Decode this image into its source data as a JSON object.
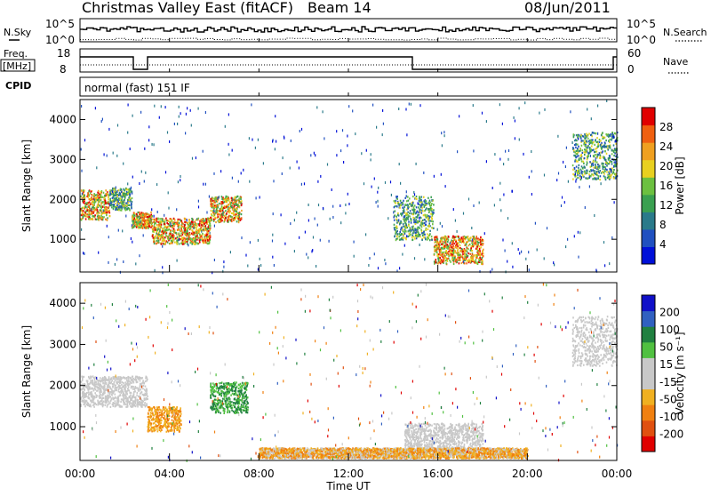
{
  "header": {
    "title": "Christmas Valley East (fitACF)",
    "beam": "Beam 14",
    "date": "08/Jun/2011"
  },
  "summary_panels": {
    "nsky": {
      "label": "N.Sky",
      "ticks": [
        "10^5",
        "10^0"
      ]
    },
    "nsearch": {
      "label": "N.Search",
      "ticks": [
        "10^5",
        "10^0"
      ]
    },
    "freq": {
      "label_line1": "Freq.",
      "label_line2": "[MHz]",
      "ticks": [
        "18",
        "8"
      ]
    },
    "nave": {
      "label": "Nave",
      "ticks": [
        "60",
        "0"
      ]
    },
    "cpid": {
      "label": "CPID",
      "mode_text": "normal (fast) 151 IF"
    }
  },
  "colors": {
    "power": [
      "#0010d8",
      "#2050c0",
      "#2a7a8a",
      "#3aa050",
      "#6cc040",
      "#e8d020",
      "#f0a020",
      "#f06010",
      "#e00000"
    ],
    "velocity": [
      "#1010c8",
      "#3060c0",
      "#208040",
      "#50c040",
      "#c8c8c8",
      "#c8c8c8",
      "#f0b020",
      "#f08010",
      "#e05010",
      "#e00000"
    ]
  },
  "chart_data": [
    {
      "type": "heatmap",
      "name": "power",
      "xlabel": "",
      "ylabel": "Slant Range [km]",
      "xlim": [
        0,
        24
      ],
      "ylim": [
        180,
        4500
      ],
      "yticks": [
        "1000",
        "2000",
        "3000",
        "4000"
      ],
      "colorbar": {
        "label": "Power [dB]",
        "range": [
          0,
          32
        ],
        "ticks": [
          "4",
          "8",
          "12",
          "16",
          "20",
          "24",
          "28"
        ]
      },
      "features": [
        {
          "t": [
            0.0,
            1.3
          ],
          "r": [
            1500,
            2250
          ],
          "level": "high"
        },
        {
          "t": [
            1.3,
            2.3
          ],
          "r": [
            1750,
            2300
          ],
          "level": "medium"
        },
        {
          "t": [
            2.3,
            3.2
          ],
          "r": [
            1300,
            1700
          ],
          "level": "high"
        },
        {
          "t": [
            3.2,
            5.8
          ],
          "r": [
            900,
            1550
          ],
          "level": "high"
        },
        {
          "t": [
            5.8,
            7.2
          ],
          "r": [
            1450,
            2100
          ],
          "level": "high"
        },
        {
          "t": [
            14.0,
            15.8
          ],
          "r": [
            1000,
            2100
          ],
          "level": "medium"
        },
        {
          "t": [
            15.8,
            18.0
          ],
          "r": [
            400,
            1100
          ],
          "level": "high"
        },
        {
          "t": [
            22.0,
            24.0
          ],
          "r": [
            2500,
            3700
          ],
          "level": "medium"
        }
      ]
    },
    {
      "type": "heatmap",
      "name": "velocity",
      "xlabel": "Time UT",
      "ylabel": "Slant Range [km]",
      "xlim": [
        0,
        24
      ],
      "ylim": [
        180,
        4500
      ],
      "xticks": [
        "00:00",
        "04:00",
        "08:00",
        "12:00",
        "16:00",
        "20:00",
        "00:00"
      ],
      "yticks": [
        "1000",
        "2000",
        "3000",
        "4000"
      ],
      "colorbar": {
        "label": "Velocity [m s-1]",
        "ticks": [
          "200",
          "100",
          "50",
          "15",
          "-15",
          "-50",
          "-100",
          "-200"
        ]
      },
      "features": [
        {
          "t": [
            0.0,
            3.0
          ],
          "r": [
            1500,
            2250
          ],
          "value": "near zero"
        },
        {
          "t": [
            3.0,
            4.5
          ],
          "r": [
            900,
            1500
          ],
          "value": "-50"
        },
        {
          "t": [
            5.8,
            7.5
          ],
          "r": [
            1350,
            2100
          ],
          "value": "50"
        },
        {
          "t": [
            14.5,
            18.0
          ],
          "r": [
            400,
            1100
          ],
          "value": "near zero"
        },
        {
          "t": [
            8.0,
            20.0
          ],
          "r": [
            250,
            500
          ],
          "value": "-15 to -50"
        },
        {
          "t": [
            22.0,
            24.0
          ],
          "r": [
            2500,
            3700
          ],
          "value": "near zero"
        }
      ]
    }
  ],
  "labels": {
    "colorbar_power_label": "Power [dB]",
    "colorbar_velocity_label": "Velocity [m s⁻¹]"
  }
}
